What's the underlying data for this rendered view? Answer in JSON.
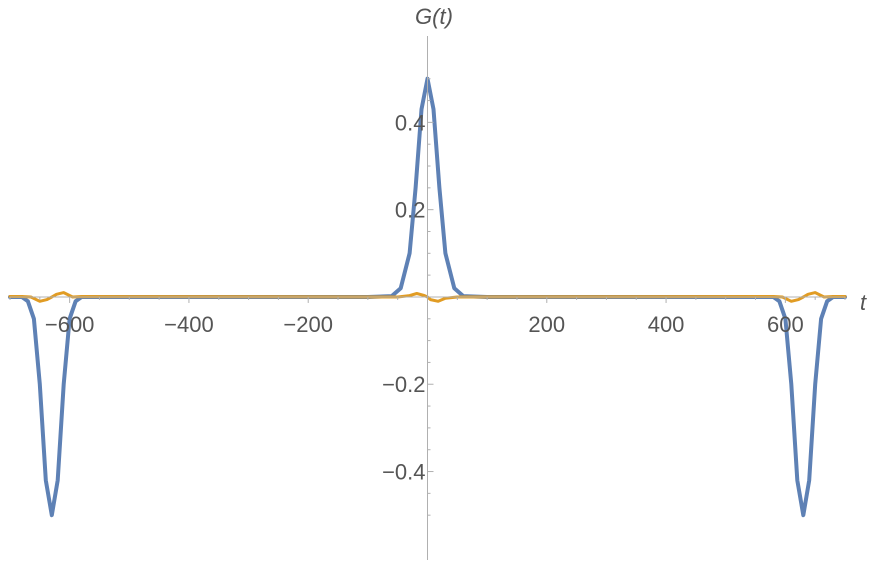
{
  "chart_data": {
    "type": "line",
    "xlabel": "t",
    "ylabel_parts": [
      "G(",
      "t",
      ")"
    ],
    "xlim": [
      -700,
      700
    ],
    "ylim": [
      -0.55,
      0.52
    ],
    "x_ticks": [
      -600,
      -400,
      -200,
      200,
      400,
      600
    ],
    "x_tick_labels": [
      "−600",
      "−400",
      "−200",
      "200",
      "400",
      "600"
    ],
    "y_ticks": [
      0.4,
      0.2,
      -0.2,
      -0.4
    ],
    "y_tick_labels": [
      "0.4",
      "0.2",
      "−0.2",
      "−0.4"
    ],
    "grid": false,
    "series": [
      {
        "color": "#5e81b5",
        "points": [
          [
            -700,
            0
          ],
          [
            -680,
            0
          ],
          [
            -670,
            -0.01
          ],
          [
            -660,
            -0.05
          ],
          [
            -650,
            -0.2
          ],
          [
            -640,
            -0.42
          ],
          [
            -630,
            -0.5
          ],
          [
            -620,
            -0.42
          ],
          [
            -610,
            -0.2
          ],
          [
            -600,
            -0.05
          ],
          [
            -590,
            -0.01
          ],
          [
            -580,
            0
          ],
          [
            -100,
            0
          ],
          [
            -60,
            0.002
          ],
          [
            -45,
            0.02
          ],
          [
            -30,
            0.1
          ],
          [
            -20,
            0.25
          ],
          [
            -10,
            0.43
          ],
          [
            0,
            0.5
          ],
          [
            10,
            0.43
          ],
          [
            20,
            0.25
          ],
          [
            30,
            0.1
          ],
          [
            45,
            0.02
          ],
          [
            60,
            0.002
          ],
          [
            100,
            0
          ],
          [
            580,
            0
          ],
          [
            590,
            -0.01
          ],
          [
            600,
            -0.05
          ],
          [
            610,
            -0.2
          ],
          [
            620,
            -0.42
          ],
          [
            630,
            -0.5
          ],
          [
            640,
            -0.42
          ],
          [
            650,
            -0.2
          ],
          [
            660,
            -0.05
          ],
          [
            670,
            -0.01
          ],
          [
            680,
            0
          ],
          [
            700,
            0
          ]
        ]
      },
      {
        "color": "#e19c24",
        "points": [
          [
            -700,
            0.001
          ],
          [
            -680,
            0.001
          ],
          [
            -665,
            0
          ],
          [
            -650,
            -0.01
          ],
          [
            -638,
            -0.006
          ],
          [
            -630,
            0
          ],
          [
            -622,
            0.006
          ],
          [
            -610,
            0.01
          ],
          [
            -595,
            0
          ],
          [
            -580,
            0.001
          ],
          [
            -50,
            0
          ],
          [
            -30,
            0.003
          ],
          [
            -18,
            0.008
          ],
          [
            -5,
            0.003
          ],
          [
            0,
            0
          ],
          [
            5,
            -0.006
          ],
          [
            18,
            -0.01
          ],
          [
            30,
            -0.003
          ],
          [
            50,
            0
          ],
          [
            580,
            0.001
          ],
          [
            595,
            0
          ],
          [
            610,
            -0.01
          ],
          [
            622,
            -0.006
          ],
          [
            630,
            0
          ],
          [
            638,
            0.006
          ],
          [
            650,
            0.01
          ],
          [
            665,
            0
          ],
          [
            680,
            0.001
          ],
          [
            700,
            0.001
          ]
        ]
      }
    ]
  }
}
